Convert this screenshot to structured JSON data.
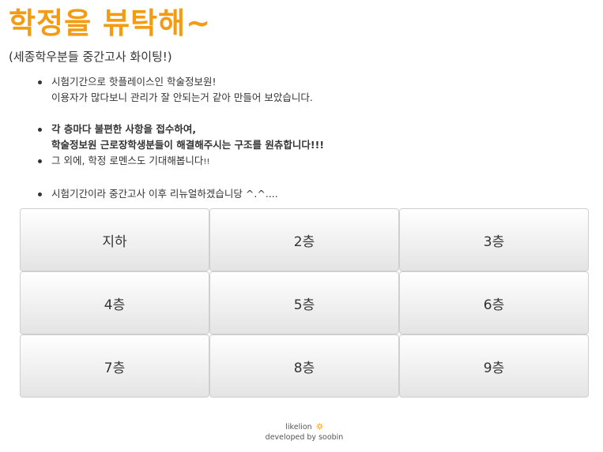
{
  "header": {
    "title": "학정을 뷰탁해~",
    "subtitle": "(세종학우분들 중간고사 화이팅!)"
  },
  "notices": {
    "n1_line1": "시험기간으로 핫플레이스인 학술정보원!",
    "n1_line2": "이용자가 많다보니 관리가 잘 안되는거 같아 만들어 보았습니다.",
    "n2_line1": "각 층마다 불편한 사항을 접수하여,",
    "n2_line2": "학술정보원 근로장학생분들이 해결해주시는 구조를 원츄합니다",
    "n2_exclaim": "!!!",
    "n3_text": "그 외에, 학정 로멘스도 기대해봅니다",
    "n3_exclaim": "!!",
    "n4_text": "시험기간이라 중간고사 이후 리뉴얼하겠습니당 ^.^...."
  },
  "floors": [
    "지하",
    "2층",
    "3층",
    "4층",
    "5층",
    "6층",
    "7층",
    "8층",
    "9층"
  ],
  "footer": {
    "brand": "likelion",
    "credit": "developed by soobin"
  },
  "colors": {
    "title": "#f39c12",
    "icon": "#f39c12"
  }
}
